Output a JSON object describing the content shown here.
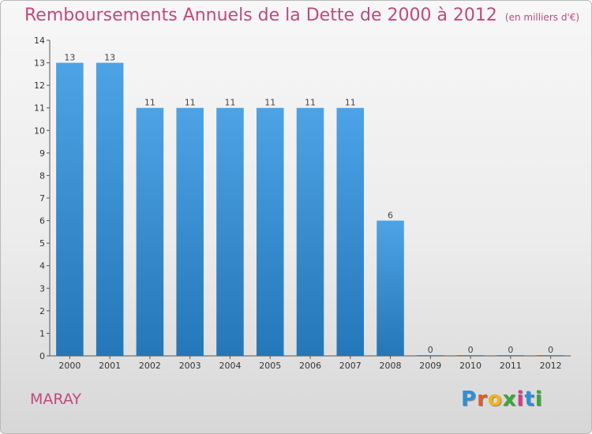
{
  "header": {
    "title": "Remboursements Annuels de la Dette de 2000 à 2012",
    "subtitle": "(en milliers d'€)"
  },
  "commune": "MARAY",
  "logo": {
    "letters": [
      "P",
      "r",
      "o",
      "x",
      "i",
      "t",
      "i"
    ],
    "colors": [
      "#2f8fd6",
      "#e05a2a",
      "#f2b517",
      "#3aa63a",
      "#d43a8a",
      "#2f8fd6",
      "#3aa63a"
    ]
  },
  "chart_data": {
    "type": "bar",
    "categories": [
      "2000",
      "2001",
      "2002",
      "2003",
      "2004",
      "2005",
      "2006",
      "2007",
      "2008",
      "2009",
      "2010",
      "2011",
      "2012"
    ],
    "values": [
      13,
      13,
      11,
      11,
      11,
      11,
      11,
      11,
      6,
      0,
      0,
      0,
      0
    ],
    "value_labels": [
      "13",
      "13",
      "11",
      "11",
      "11",
      "11",
      "11",
      "11",
      "6",
      "0",
      "0",
      "0",
      "0"
    ],
    "title": "Remboursements Annuels de la Dette de 2000 à 2012",
    "ylim": [
      0,
      14
    ],
    "yticks": [
      "0",
      "1",
      "2",
      "3",
      "4",
      "5",
      "6",
      "7",
      "8",
      "9",
      "10",
      "11",
      "12",
      "13",
      "14"
    ],
    "bar_color": "#4da3e6",
    "bar_color_dark": "#2477b8",
    "grid": false
  }
}
